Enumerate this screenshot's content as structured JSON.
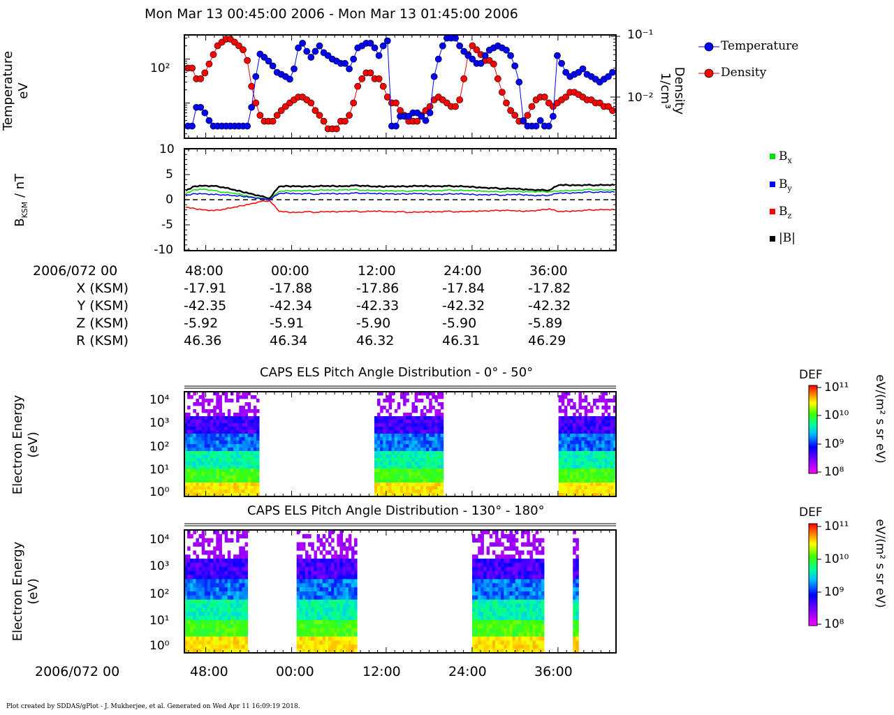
{
  "header": {
    "title": "Mon Mar 13 00:45:00 2006 - Mon Mar 13 01:45:00 2006"
  },
  "footer": {
    "text": "Plot created by SDDAS/gPlot - J. Mukherjee, et al.  Generated on Wed Apr 11 16:09:19 2018."
  },
  "panel1": {
    "ylabel_line1": "Temperature",
    "ylabel_line2": "eV",
    "right_label_line1": "Density",
    "right_label_line2": "1/cm³",
    "left_ticks": [
      "10²"
    ],
    "right_ticks": [
      "10⁻¹",
      "10⁻²"
    ],
    "legend": [
      {
        "label": "Temperature",
        "color": "#0000ff"
      },
      {
        "label": "Density",
        "color": "#ff0000"
      }
    ]
  },
  "panel2": {
    "ylabel": "B_KSM / nT",
    "ylabel_main": "B",
    "ylabel_sub": "KSM",
    "ylabel_rest": " / nT",
    "ticks": [
      "10",
      "5",
      "0",
      "-5",
      "-10"
    ],
    "legend": [
      {
        "label": "Bx",
        "main": "B",
        "sub": "x",
        "color": "#00e000"
      },
      {
        "label": "By",
        "main": "B",
        "sub": "y",
        "color": "#0000ff"
      },
      {
        "label": "Bz",
        "main": "B",
        "sub": "z",
        "color": "#ff0000"
      },
      {
        "label": "|B|",
        "main": "|B|",
        "sub": "",
        "color": "#000000"
      }
    ]
  },
  "ephemeris": {
    "date_label": "2006/072 00",
    "times": [
      "48:00",
      "00:00",
      "12:00",
      "24:00",
      "36:00"
    ],
    "rows": [
      {
        "label": "X (KSM)",
        "values": [
          "-17.91",
          "-17.88",
          "-17.86",
          "-17.84",
          "-17.82"
        ]
      },
      {
        "label": "Y (KSM)",
        "values": [
          "-42.35",
          "-42.34",
          "-42.33",
          "-42.32",
          "-42.32"
        ]
      },
      {
        "label": "Z (KSM)",
        "values": [
          "-5.92",
          "-5.91",
          "-5.90",
          "-5.90",
          "-5.89"
        ]
      },
      {
        "label": "R (KSM)",
        "values": [
          "46.36",
          "46.34",
          "46.32",
          "46.31",
          "46.29"
        ]
      }
    ]
  },
  "spec1": {
    "title": "CAPS ELS Pitch Angle Distribution - 0° - 50°",
    "ylabel_line1": "Electron Energy",
    "ylabel_line2": "(eV)",
    "ticks": [
      "10⁴",
      "10³",
      "10²",
      "10¹",
      "10⁰"
    ],
    "cbar_title": "DEF",
    "cbar_ticks": [
      "10¹¹",
      "10¹⁰",
      "10⁹",
      "10⁸"
    ],
    "cbar_unit": "eV/(m² s sr eV)"
  },
  "spec2": {
    "title": "CAPS ELS Pitch Angle Distribution - 130° - 180°",
    "ylabel_line1": "Electron Energy",
    "ylabel_line2": "(eV)",
    "ticks": [
      "10⁴",
      "10³",
      "10²",
      "10¹",
      "10⁰"
    ],
    "cbar_title": "DEF",
    "cbar_ticks": [
      "10¹¹",
      "10¹⁰",
      "10⁹",
      "10⁸"
    ],
    "cbar_unit": "eV/(m² s sr eV)"
  },
  "bottom_axis": {
    "date_label": "2006/072 00",
    "times": [
      "48:00",
      "00:00",
      "12:00",
      "24:00",
      "36:00"
    ]
  },
  "chart_data": [
    {
      "type": "line",
      "panel": "plasma moments",
      "x_ticks": [
        "48:00",
        "00:00",
        "12:00",
        "24:00",
        "36:00"
      ],
      "series": [
        {
          "name": "Temperature",
          "axis": "left",
          "unit": "eV",
          "color": "#0000ff",
          "values": [
            3,
            3,
            8,
            8,
            6,
            4,
            3,
            3,
            3,
            3,
            3,
            3,
            3,
            3,
            3,
            8,
            40,
            130,
            110,
            90,
            70,
            50,
            45,
            40,
            35,
            60,
            180,
            230,
            150,
            110,
            150,
            200,
            140,
            120,
            100,
            90,
            80,
            80,
            60,
            100,
            180,
            200,
            230,
            230,
            180,
            120,
            200,
            260,
            3,
            3,
            5,
            5,
            5,
            6,
            6,
            5,
            4,
            6,
            40,
            100,
            200,
            300,
            300,
            300,
            200,
            150,
            120,
            100,
            80,
            80,
            120,
            160,
            180,
            200,
            180,
            160,
            120,
            70,
            30,
            4,
            3,
            3,
            3,
            4,
            3,
            3,
            5,
            120,
            80,
            50,
            40,
            45,
            50,
            60,
            45,
            40,
            35,
            30,
            35,
            40,
            50
          ]
        },
        {
          "name": "Density",
          "axis": "right",
          "unit": "1/cm³",
          "color": "#ff0000",
          "values": [
            0.03,
            0.03,
            0.02,
            0.02,
            0.025,
            0.035,
            0.05,
            0.07,
            0.08,
            0.09,
            0.09,
            0.08,
            0.07,
            0.06,
            0.04,
            0.015,
            0.008,
            0.005,
            0.004,
            0.004,
            0.004,
            0.005,
            0.006,
            0.007,
            0.008,
            0.009,
            0.01,
            0.01,
            0.009,
            0.008,
            0.006,
            0.005,
            0.004,
            0.003,
            0.003,
            0.003,
            0.004,
            0.004,
            0.005,
            0.008,
            0.015,
            0.02,
            0.025,
            0.025,
            0.02,
            0.02,
            0.015,
            0.01,
            0.008,
            0.008,
            0.006,
            0.005,
            0.004,
            0.004,
            0.004,
            0.005,
            0.006,
            0.007,
            0.009,
            0.01,
            0.009,
            0.008,
            0.007,
            0.007,
            0.009,
            0.02,
            0.05,
            0.07,
            0.06,
            0.05,
            0.04,
            0.04,
            0.035,
            0.02,
            0.012,
            0.008,
            0.006,
            0.005,
            0.004,
            0.004,
            0.005,
            0.007,
            0.009,
            0.01,
            0.01,
            0.008,
            0.007,
            0.008,
            0.009,
            0.01,
            0.012,
            0.012,
            0.011,
            0.01,
            0.009,
            0.009,
            0.008,
            0.008,
            0.007,
            0.007,
            0.006
          ]
        }
      ]
    },
    {
      "type": "line",
      "panel": "magnetic field",
      "ylim": [
        -10,
        10
      ],
      "x_ticks": [
        "48:00",
        "00:00",
        "12:00",
        "24:00",
        "36:00"
      ],
      "series": [
        {
          "name": "Bx",
          "color": "#00e000",
          "values": [
            1.2,
            2,
            2.1,
            1.8,
            1.5,
            1.3,
            1.0,
            0.6,
            0.3,
            0.0,
            1.6,
            1.8,
            1.8,
            1.8,
            1.9,
            1.9,
            1.9,
            2.0,
            2.0,
            1.9,
            1.8,
            1.8,
            1.8,
            1.7,
            1.7,
            1.8,
            1.8,
            1.8,
            1.9,
            1.9,
            1.8,
            1.8,
            1.7,
            1.6,
            1.6,
            1.7,
            1.6,
            1.6,
            1.6,
            1.6,
            1.7,
            1.8,
            1.9,
            2.0,
            2.0,
            1.9,
            1.9
          ]
        },
        {
          "name": "By",
          "color": "#0000ff",
          "values": [
            0.8,
            1.2,
            1.2,
            1.0,
            1.0,
            0.8,
            0.7,
            0.5,
            0.2,
            0.0,
            1.2,
            1.3,
            1.2,
            1.2,
            1.1,
            1.2,
            1.2,
            1.2,
            1.3,
            1.3,
            1.2,
            1.2,
            1.2,
            1.1,
            1.2,
            1.2,
            1.1,
            1.1,
            1.1,
            1.2,
            1.1,
            1.0,
            1.0,
            1.0,
            0.9,
            1.0,
            1.0,
            0.9,
            0.8,
            0.9,
            1.3,
            1.3,
            1.4,
            1.5,
            1.5,
            1.5,
            1.5
          ]
        },
        {
          "name": "Bz",
          "color": "#ff0000",
          "values": [
            -1.5,
            -1.8,
            -2.0,
            -2.2,
            -1.9,
            -1.6,
            -1.2,
            -0.8,
            -0.4,
            -0.2,
            -2.3,
            -2.5,
            -2.5,
            -2.4,
            -2.5,
            -2.4,
            -2.4,
            -2.3,
            -2.3,
            -2.4,
            -2.3,
            -2.3,
            -2.4,
            -2.4,
            -2.5,
            -2.5,
            -2.4,
            -2.4,
            -2.3,
            -2.4,
            -2.4,
            -2.3,
            -2.2,
            -2.2,
            -2.1,
            -2.2,
            -2.3,
            -2.2,
            -2.1,
            -1.8,
            -2.4,
            -2.3,
            -2.2,
            -2.1,
            -2.0,
            -2.0,
            -2.0
          ]
        },
        {
          "name": "|B|",
          "color": "#000000",
          "values": [
            1.8,
            2.7,
            2.8,
            2.7,
            2.5,
            2.0,
            1.6,
            1.2,
            0.7,
            0.3,
            2.6,
            2.7,
            2.7,
            2.6,
            2.7,
            2.7,
            2.7,
            2.7,
            2.8,
            2.8,
            2.6,
            2.6,
            2.7,
            2.6,
            2.7,
            2.7,
            2.7,
            2.7,
            2.7,
            2.7,
            2.6,
            2.5,
            2.4,
            2.3,
            2.2,
            2.2,
            2.1,
            2.0,
            1.9,
            1.9,
            2.9,
            2.9,
            2.9,
            2.9,
            2.9,
            2.9,
            2.9
          ]
        }
      ]
    },
    {
      "type": "heatmap",
      "panel": "CAPS ELS Pitch Angle Distribution - 0° - 50°",
      "y_scale": "log",
      "ylim_eV": [
        1,
        20000
      ],
      "colorbar_range": [
        100000000.0,
        100000000000.0
      ],
      "coverage_segments": [
        {
          "start_frac": 0.0,
          "end_frac": 0.17
        },
        {
          "start_frac": 0.44,
          "end_frac": 0.6
        },
        {
          "start_frac": 0.87,
          "end_frac": 1.0
        }
      ]
    },
    {
      "type": "heatmap",
      "panel": "CAPS ELS Pitch Angle Distribution - 130° - 180°",
      "y_scale": "log",
      "ylim_eV": [
        1,
        20000
      ],
      "colorbar_range": [
        100000000.0,
        100000000000.0
      ],
      "coverage_segments": [
        {
          "start_frac": 0.0,
          "end_frac": 0.14
        },
        {
          "start_frac": 0.26,
          "end_frac": 0.4
        },
        {
          "start_frac": 0.67,
          "end_frac": 0.83
        },
        {
          "start_frac": 0.9,
          "end_frac": 0.91
        }
      ]
    }
  ]
}
